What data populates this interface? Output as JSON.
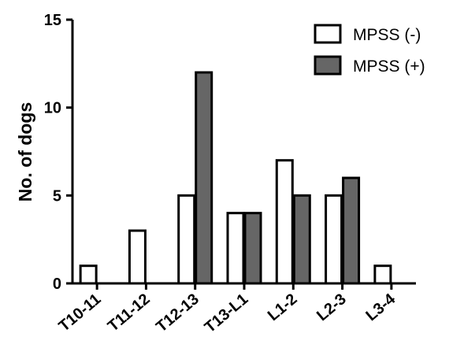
{
  "chart_data": {
    "type": "bar",
    "title": "",
    "xlabel": "",
    "ylabel": "No. of dogs",
    "ylim": [
      0,
      15
    ],
    "yticks": [
      "0",
      "5",
      "10",
      "15"
    ],
    "grid": false,
    "legend_position": "top-right",
    "categories": [
      "T10-11",
      "T11-12",
      "T12-13",
      "T13-L1",
      "L1-2",
      "L2-3",
      "L3-4"
    ],
    "series": [
      {
        "name": "MPSS (-)",
        "color": "#ffffff",
        "values": [
          1,
          3,
          5,
          4,
          7,
          5,
          1
        ]
      },
      {
        "name": "MPSS (+)",
        "color": "#666666",
        "values": [
          0,
          0,
          12,
          4,
          5,
          6,
          0
        ]
      }
    ]
  }
}
